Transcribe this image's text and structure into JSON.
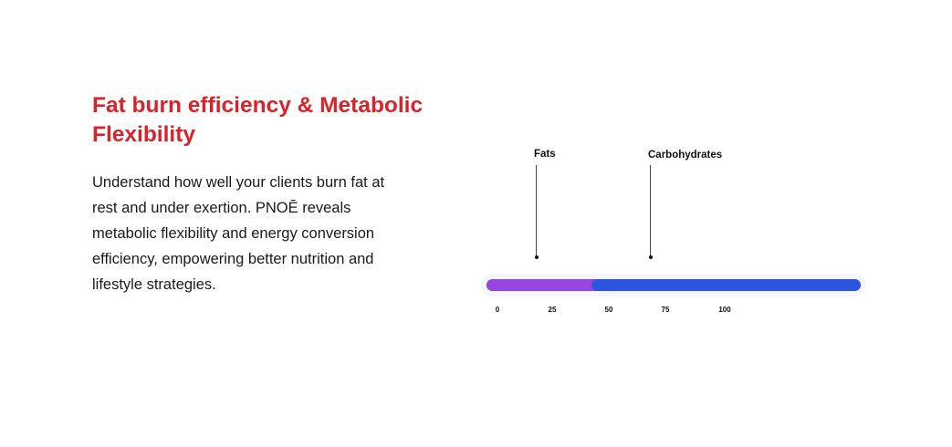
{
  "title": "Fat burn efficiency & Metabolic Flexibility",
  "description": "Understand how well your clients burn fat at rest and under exertion. PNOĒ reveals metabolic flexibility and energy conversion efficiency, empowering better nutrition and lifestyle strategies.",
  "diagram": {
    "markers": [
      {
        "label": "Fats"
      },
      {
        "label": "Carbohydrates"
      }
    ],
    "fat_share_percent": 28,
    "ticks": [
      "0",
      "25",
      "50",
      "75",
      "100"
    ],
    "colors": {
      "fats": "#9747e0",
      "carbohydrates": "#2d55e0",
      "title": "#d9232a"
    }
  }
}
